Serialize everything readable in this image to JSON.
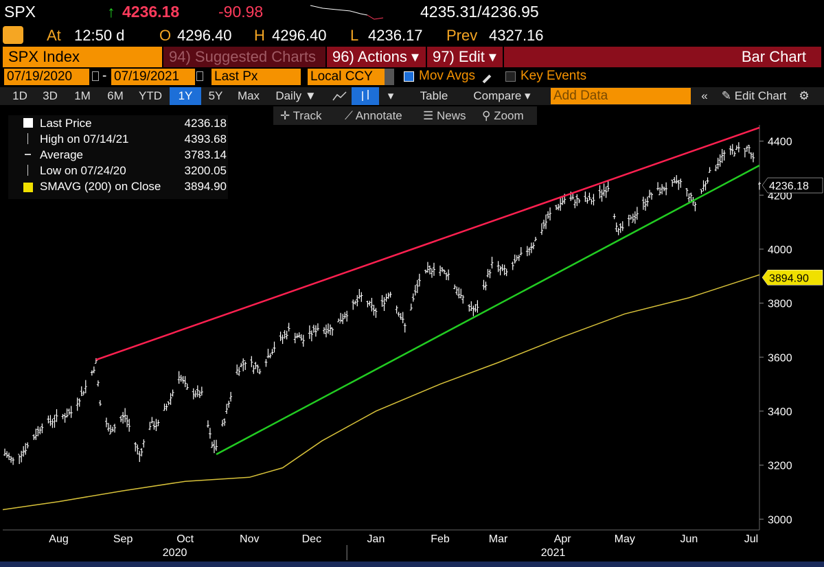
{
  "quote": {
    "ticker": "SPX",
    "arrow": "↑",
    "last": "4236.18",
    "change": "-90.98",
    "bid_ask": "4235.31/4236.95",
    "at_label": "At",
    "time": "12:50 d",
    "open_label": "O",
    "open": "4296.40",
    "high_label": "H",
    "high": "4296.40",
    "low_label": "L",
    "low": "4236.17",
    "prev_label": "Prev",
    "prev": "4327.16"
  },
  "menu": {
    "security": "SPX Index",
    "suggested": "94) Suggested Charts",
    "actions": "96) Actions ▾",
    "edit": "97) Edit ▾",
    "title": "Bar Chart"
  },
  "controls": {
    "start_date": "07/19/2020",
    "dash": "-",
    "end_date": "07/19/2021",
    "field": "Last Px",
    "currency": "Local CCY",
    "mov_avgs": "Mov Avgs",
    "key_events": "Key Events",
    "add_data_placeholder": "Add Data",
    "table": "Table",
    "compare": "Compare ▾",
    "daily": "Daily ▼",
    "edit_chart": "Edit Chart",
    "periods": [
      "1D",
      "3D",
      "1M",
      "6M",
      "YTD",
      "1Y",
      "5Y",
      "Max"
    ],
    "active_period": "1Y"
  },
  "tools": {
    "track": "Track",
    "annotate": "Annotate",
    "news": "News",
    "zoom": "Zoom"
  },
  "legend": [
    {
      "label": "Last Price",
      "value": "4236.18"
    },
    {
      "label": "High on 07/14/21",
      "value": "4393.68"
    },
    {
      "label": "Average",
      "value": "3783.14"
    },
    {
      "label": "Low on 07/24/20",
      "value": "3200.05"
    },
    {
      "label": "SMAVG (200)  on Close",
      "value": "3894.90"
    }
  ],
  "price_tags": {
    "last": "4236.18",
    "sma": "3894.90"
  },
  "colors": {
    "price": "#ffffff",
    "sma": "#d8c23a",
    "resistance": "#ff2050",
    "support": "#22cc22",
    "accent": "#f59200",
    "menu_bar": "#8b0e1c"
  },
  "chart_data": {
    "type": "bar",
    "ylim": [
      2960,
      4460
    ],
    "y_ticks": [
      3000,
      3200,
      3400,
      3600,
      3800,
      4000,
      4200,
      4400
    ],
    "x_months": [
      "Aug",
      "Sep",
      "Oct",
      "Nov",
      "Dec",
      "Jan",
      "Feb",
      "Mar",
      "Apr",
      "May",
      "Jun",
      "Jul"
    ],
    "x_years": [
      "2020",
      "2021"
    ],
    "x_start": "2020-07-19",
    "x_end": "2021-07-19",
    "price_path": [
      [
        "2020-07-19",
        3250
      ],
      [
        "2020-07-24",
        3215
      ],
      [
        "2020-07-31",
        3270
      ],
      [
        "2020-08-07",
        3350
      ],
      [
        "2020-08-14",
        3372
      ],
      [
        "2020-08-21",
        3395
      ],
      [
        "2020-08-28",
        3490
      ],
      [
        "2020-09-02",
        3580
      ],
      [
        "2020-09-04",
        3426
      ],
      [
        "2020-09-08",
        3331
      ],
      [
        "2020-09-11",
        3340
      ],
      [
        "2020-09-16",
        3385
      ],
      [
        "2020-09-23",
        3237
      ],
      [
        "2020-09-28",
        3350
      ],
      [
        "2020-10-02",
        3350
      ],
      [
        "2020-10-08",
        3450
      ],
      [
        "2020-10-12",
        3535
      ],
      [
        "2020-10-16",
        3480
      ],
      [
        "2020-10-23",
        3460
      ],
      [
        "2020-10-28",
        3270
      ],
      [
        "2020-10-30",
        3270
      ],
      [
        "2020-11-03",
        3370
      ],
      [
        "2020-11-09",
        3550
      ],
      [
        "2020-11-13",
        3585
      ],
      [
        "2020-11-20",
        3557
      ],
      [
        "2020-11-27",
        3638
      ],
      [
        "2020-12-04",
        3699
      ],
      [
        "2020-12-11",
        3663
      ],
      [
        "2020-12-18",
        3709
      ],
      [
        "2020-12-24",
        3703
      ],
      [
        "2020-12-31",
        3756
      ],
      [
        "2021-01-08",
        3824
      ],
      [
        "2021-01-15",
        3768
      ],
      [
        "2021-01-22",
        3841
      ],
      [
        "2021-01-29",
        3714
      ],
      [
        "2021-02-05",
        3886
      ],
      [
        "2021-02-12",
        3934
      ],
      [
        "2021-02-19",
        3906
      ],
      [
        "2021-02-26",
        3811
      ],
      [
        "2021-03-04",
        3768
      ],
      [
        "2021-03-12",
        3943
      ],
      [
        "2021-03-19",
        3913
      ],
      [
        "2021-03-26",
        3974
      ],
      [
        "2021-04-01",
        4020
      ],
      [
        "2021-04-09",
        4128
      ],
      [
        "2021-04-16",
        4185
      ],
      [
        "2021-04-23",
        4180
      ],
      [
        "2021-04-30",
        4181
      ],
      [
        "2021-05-07",
        4232
      ],
      [
        "2021-05-12",
        4063
      ],
      [
        "2021-05-19",
        4115
      ],
      [
        "2021-05-28",
        4204
      ],
      [
        "2021-06-04",
        4229
      ],
      [
        "2021-06-11",
        4247
      ],
      [
        "2021-06-18",
        4166
      ],
      [
        "2021-06-25",
        4280
      ],
      [
        "2021-07-02",
        4352
      ],
      [
        "2021-07-09",
        4369
      ],
      [
        "2021-07-14",
        4374
      ],
      [
        "2021-07-16",
        4327
      ],
      [
        "2021-07-19",
        4236
      ]
    ],
    "sma_path": [
      [
        "2020-07-19",
        3035
      ],
      [
        "2020-08-15",
        3065
      ],
      [
        "2020-09-15",
        3105
      ],
      [
        "2020-10-15",
        3140
      ],
      [
        "2020-11-15",
        3155
      ],
      [
        "2020-12-01",
        3190
      ],
      [
        "2020-12-20",
        3290
      ],
      [
        "2021-01-15",
        3400
      ],
      [
        "2021-02-15",
        3500
      ],
      [
        "2021-03-15",
        3580
      ],
      [
        "2021-04-15",
        3675
      ],
      [
        "2021-05-15",
        3760
      ],
      [
        "2021-06-15",
        3820
      ],
      [
        "2021-07-19",
        3905
      ]
    ],
    "resistance_line": [
      [
        "2020-09-02",
        3590
      ],
      [
        "2021-07-19",
        4450
      ]
    ],
    "support_line": [
      [
        "2020-10-30",
        3240
      ],
      [
        "2021-07-19",
        4310
      ]
    ]
  }
}
